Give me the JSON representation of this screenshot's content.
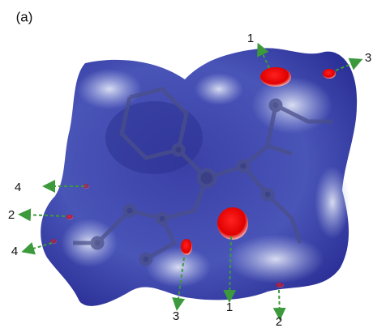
{
  "panel_label": "(a)",
  "annotations": [
    {
      "label": "1"
    },
    {
      "label": "3"
    },
    {
      "label": "4"
    },
    {
      "label": "2"
    },
    {
      "label": "4"
    },
    {
      "label": "3"
    },
    {
      "label": "1"
    },
    {
      "label": "2"
    }
  ]
}
